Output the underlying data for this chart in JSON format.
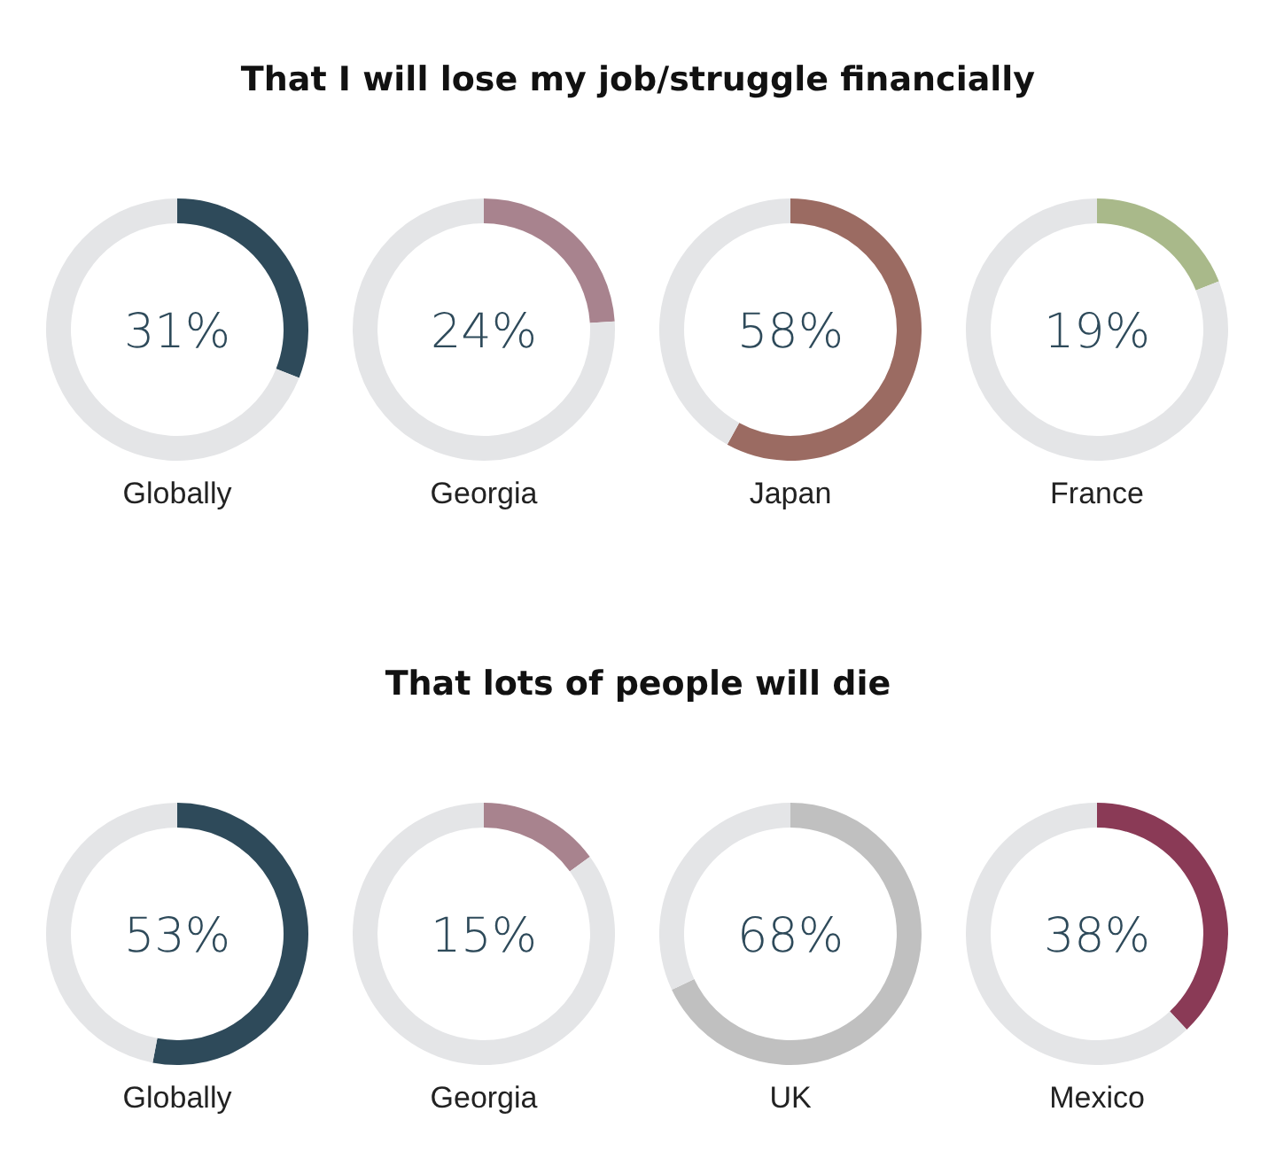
{
  "chart_data": [
    {
      "type": "donut",
      "title": "That I will lose my job/struggle financially",
      "xlabel": "Globally",
      "categories": [
        null,
        null
      ],
      "values": [
        31,
        69
      ],
      "colors": [
        "#2e4a5a",
        "#e4e5e7"
      ],
      "annotations": [
        "31%"
      ]
    },
    {
      "type": "donut",
      "xlabel": "Georgia",
      "categories": [
        null,
        null
      ],
      "values": [
        24,
        76
      ],
      "colors": [
        "#a8838e",
        "#e4e5e7"
      ],
      "annotations": [
        "24%"
      ]
    },
    {
      "type": "donut",
      "xlabel": "Japan",
      "categories": [
        null,
        null
      ],
      "values": [
        58,
        42
      ],
      "colors": [
        "#9b6b62",
        "#e4e5e7"
      ],
      "annotations": [
        "58%"
      ]
    },
    {
      "type": "donut",
      "xlabel": "France",
      "categories": [
        null,
        null
      ],
      "values": [
        19,
        81
      ],
      "colors": [
        "#a9b98a",
        "#e4e5e7"
      ],
      "annotations": [
        "19%"
      ]
    },
    {
      "type": "donut",
      "title": "That lots of people will die",
      "xlabel": "Globally",
      "categories": [
        null,
        null
      ],
      "values": [
        53,
        47
      ],
      "colors": [
        "#2e4a5a",
        "#e4e5e7"
      ],
      "annotations": [
        "53%"
      ]
    },
    {
      "type": "donut",
      "xlabel": "Georgia",
      "categories": [
        null,
        null
      ],
      "values": [
        15,
        85
      ],
      "colors": [
        "#a8838e",
        "#e4e5e7"
      ],
      "annotations": [
        "15%"
      ]
    },
    {
      "type": "donut",
      "xlabel": "UK",
      "categories": [
        null,
        null
      ],
      "values": [
        68,
        32
      ],
      "colors": [
        "#c0c0c0",
        "#e4e5e7"
      ],
      "annotations": [
        "68%"
      ]
    },
    {
      "type": "donut",
      "xlabel": "Mexico",
      "categories": [
        null,
        null
      ],
      "values": [
        38,
        62
      ],
      "colors": [
        "#8a3a56",
        "#e4e5e7"
      ],
      "annotations": [
        "38%"
      ]
    }
  ]
}
